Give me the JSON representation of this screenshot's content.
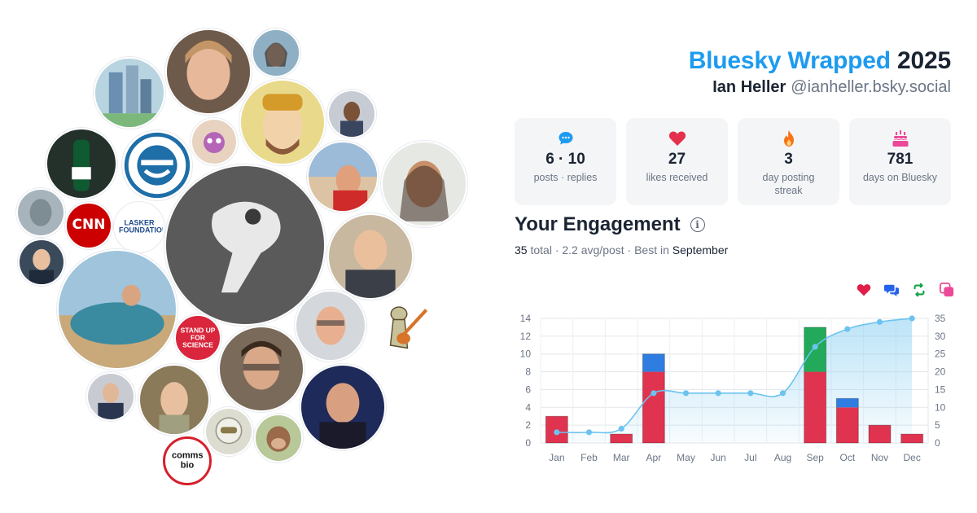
{
  "header": {
    "title_accent": "Bluesky Wrapped",
    "year": "2025",
    "name": "Ian Heller",
    "handle": "@ianheller.bsky.social"
  },
  "stats": [
    {
      "icon": "chat-bubble-icon",
      "value": "6 · 10",
      "label": "posts · replies",
      "color": "#1d9bf0"
    },
    {
      "icon": "heart-icon",
      "value": "27",
      "label": "likes received",
      "color": "#e5304d"
    },
    {
      "icon": "flame-icon",
      "value": "3",
      "label": "day posting streak",
      "color": "#f97316"
    },
    {
      "icon": "cake-icon",
      "value": "781",
      "label": "days on Bluesky",
      "color": "#ec4899"
    }
  ],
  "engagement": {
    "title": "Your Engagement",
    "total_value": "35",
    "total_word": "total",
    "avg": "· 2.2 avg/post · Best in",
    "best_month": "September"
  },
  "legend": [
    {
      "name": "likes",
      "icon": "heart-icon",
      "color": "#e11d48"
    },
    {
      "name": "replies",
      "icon": "reply-bubbles-icon",
      "color": "#2563eb"
    },
    {
      "name": "reposts",
      "icon": "repost-icon",
      "color": "#16a34a"
    },
    {
      "name": "quotes",
      "icon": "quote-icon",
      "color": "#ec4899"
    }
  ],
  "avatars": [
    {
      "label": "CNN",
      "type": "logo",
      "bg": "#cc0000",
      "fg": "#ffffff"
    },
    {
      "label": "LASKER FOUNDATION",
      "type": "logo",
      "bg": "#ffffff",
      "fg": "#1e4a8a"
    },
    {
      "label": "STAND UP FOR SCIENCE",
      "type": "logo",
      "bg": "#d9263c",
      "fg": "#ffffff"
    },
    {
      "label": "comms bio",
      "type": "logo",
      "bg": "#ffffff",
      "fg": "#111111"
    }
  ],
  "chart_data": {
    "type": "bar",
    "categories": [
      "Jan",
      "Feb",
      "Mar",
      "Apr",
      "May",
      "Jun",
      "Jul",
      "Aug",
      "Sep",
      "Oct",
      "Nov",
      "Dec"
    ],
    "series": [
      {
        "name": "likes",
        "color": "#e0334f",
        "values": [
          3,
          0,
          1,
          8,
          0,
          0,
          0,
          0,
          8,
          4,
          2,
          1
        ]
      },
      {
        "name": "replies",
        "color": "#2f7de1",
        "values": [
          0,
          0,
          0,
          2,
          0,
          0,
          0,
          0,
          0,
          1,
          0,
          0
        ]
      },
      {
        "name": "reposts",
        "color": "#22a95a",
        "values": [
          0,
          0,
          0,
          0,
          0,
          0,
          0,
          0,
          5,
          0,
          0,
          0
        ]
      }
    ],
    "cumulative": {
      "color": "#6cc3ef",
      "values": [
        3,
        3,
        4,
        14,
        14,
        14,
        14,
        14,
        27,
        32,
        34,
        35
      ]
    },
    "left_axis": {
      "ylim": [
        0,
        14
      ],
      "ticks": [
        0,
        2,
        4,
        6,
        8,
        10,
        12,
        14
      ]
    },
    "right_axis": {
      "ylim": [
        0,
        35
      ],
      "ticks": [
        0,
        5,
        10,
        15,
        20,
        25,
        30,
        35
      ]
    },
    "grid": true
  }
}
